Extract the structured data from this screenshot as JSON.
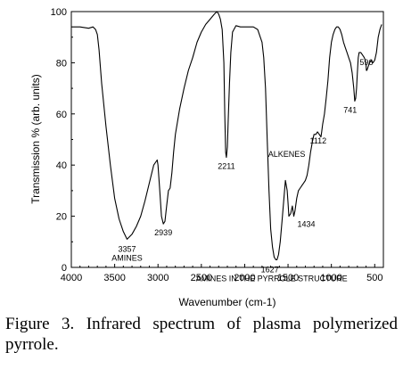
{
  "caption": "Figure 3. Infrared spectrum of plasma polymerized pyrrole.",
  "chart_data": {
    "type": "line",
    "title": "",
    "xlabel": "Wavenumber (cm-1)",
    "ylabel": "Transmission % (arb. units)",
    "xlim": [
      4000,
      400
    ],
    "ylim": [
      0,
      100
    ],
    "x_reversed": true,
    "xticks": [
      4000,
      3500,
      3000,
      2500,
      2000,
      1500,
      1000,
      500
    ],
    "yticks": [
      0,
      20,
      40,
      60,
      80,
      100
    ],
    "grid": false,
    "line_color": "#000000",
    "series": [
      {
        "x": [
          4000,
          3900,
          3800,
          3750,
          3720,
          3700,
          3680,
          3650,
          3600,
          3550,
          3500,
          3450,
          3400,
          3357,
          3300,
          3250,
          3200,
          3150,
          3100,
          3050,
          3010,
          3000,
          2980,
          2960,
          2939,
          2920,
          2900,
          2880,
          2860,
          2840,
          2820,
          2800,
          2750,
          2700,
          2650,
          2600,
          2550,
          2500,
          2450,
          2400,
          2350,
          2320,
          2300,
          2280,
          2260,
          2240,
          2230,
          2220,
          2211,
          2200,
          2190,
          2175,
          2160,
          2140,
          2100,
          2050,
          2000,
          1950,
          1900,
          1850,
          1800,
          1780,
          1760,
          1740,
          1720,
          1700,
          1680,
          1660,
          1640,
          1627,
          1610,
          1590,
          1570,
          1550,
          1530,
          1510,
          1500,
          1490,
          1470,
          1450,
          1434,
          1420,
          1400,
          1380,
          1360,
          1340,
          1320,
          1300,
          1280,
          1260,
          1240,
          1220,
          1200,
          1180,
          1160,
          1140,
          1120,
          1112,
          1100,
          1080,
          1060,
          1040,
          1020,
          1000,
          980,
          960,
          940,
          920,
          900,
          880,
          860,
          840,
          820,
          800,
          780,
          760,
          741,
          730,
          720,
          710,
          700,
          690,
          680,
          660,
          640,
          620,
          610,
          600,
          596,
          590,
          580,
          560,
          540,
          520,
          500,
          480,
          460,
          440,
          420
        ],
        "y": [
          94,
          94,
          93.5,
          94,
          93,
          91,
          85,
          72,
          55,
          40,
          27,
          19,
          14,
          11,
          13,
          16,
          20,
          26,
          33,
          40,
          42,
          40,
          30,
          20,
          17,
          18,
          24,
          30,
          31,
          37,
          45,
          52,
          62,
          70,
          77,
          82,
          88,
          92,
          95,
          97,
          99,
          100,
          99,
          97,
          93,
          80,
          60,
          45,
          43,
          47,
          58,
          72,
          84,
          92,
          94.5,
          94,
          94,
          94,
          94,
          93,
          88,
          82,
          70,
          50,
          30,
          15,
          8,
          4,
          3,
          3,
          5,
          10,
          18,
          26,
          34,
          30,
          25,
          20,
          21,
          24,
          20,
          22,
          27,
          30,
          31,
          32,
          33,
          34,
          36,
          40,
          45,
          49,
          52,
          52,
          53,
          52,
          51,
          53,
          56,
          60,
          66,
          73,
          82,
          88,
          91,
          93,
          94,
          94,
          93,
          91,
          88,
          86,
          84,
          82,
          80,
          76,
          70,
          65,
          66,
          70,
          76,
          82,
          84,
          84,
          83,
          82,
          81,
          79,
          77,
          77,
          78,
          80,
          81,
          80,
          81,
          84,
          90,
          93,
          95
        ]
      }
    ],
    "annotations": [
      {
        "text": "3357",
        "x": 3357,
        "y": 11
      },
      {
        "text": "AMINES",
        "x": 3357,
        "y": 11
      },
      {
        "text": "2939",
        "x": 2939,
        "y": 17
      },
      {
        "text": "2211",
        "x": 2211,
        "y": 43
      },
      {
        "text": "1627",
        "x": 1627,
        "y": 3
      },
      {
        "text": "AMINES IN THE PYRROLE STRUCTURE",
        "x": 1627,
        "y": 3
      },
      {
        "text": "1434",
        "x": 1434,
        "y": 20
      },
      {
        "text": "1112",
        "x": 1112,
        "y": 52
      },
      {
        "text": "ALKENES",
        "x": 1112,
        "y": 52
      },
      {
        "text": "741",
        "x": 741,
        "y": 65
      },
      {
        "text": "596",
        "x": 596,
        "y": 77
      }
    ]
  }
}
